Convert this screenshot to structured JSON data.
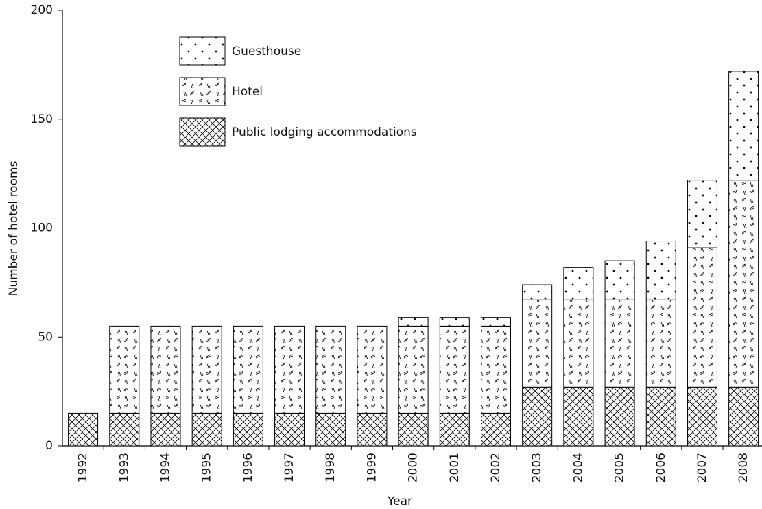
{
  "chart_data": {
    "type": "stacked_bar",
    "xlabel": "Year",
    "ylabel": "Number of hotel rooms",
    "categories": [
      "1992",
      "1993",
      "1994",
      "1995",
      "1996",
      "1997",
      "1998",
      "1999",
      "2000",
      "2001",
      "2002",
      "2003",
      "2004",
      "2005",
      "2006",
      "2007",
      "2008"
    ],
    "series": [
      {
        "name": "Public lodging accommodations",
        "color": "#000000",
        "pattern": "crosshatch",
        "values": [
          15,
          15,
          15,
          15,
          15,
          15,
          15,
          15,
          15,
          15,
          15,
          27,
          27,
          27,
          27,
          27,
          27
        ]
      },
      {
        "name": "Hotel",
        "color": "#000000",
        "pattern": "dashes",
        "values": [
          0,
          40,
          40,
          40,
          40,
          40,
          40,
          40,
          40,
          40,
          40,
          40,
          40,
          40,
          40,
          64,
          95
        ]
      },
      {
        "name": "Guesthouse",
        "color": "#000000",
        "pattern": "dots",
        "values": [
          0,
          0,
          0,
          0,
          0,
          0,
          0,
          0,
          4,
          4,
          4,
          7,
          15,
          18,
          27,
          31,
          50
        ]
      }
    ],
    "ylim": [
      0,
      200
    ],
    "yticks": [
      0,
      50,
      100,
      150,
      200
    ],
    "grid": false,
    "legend": "upper left"
  }
}
